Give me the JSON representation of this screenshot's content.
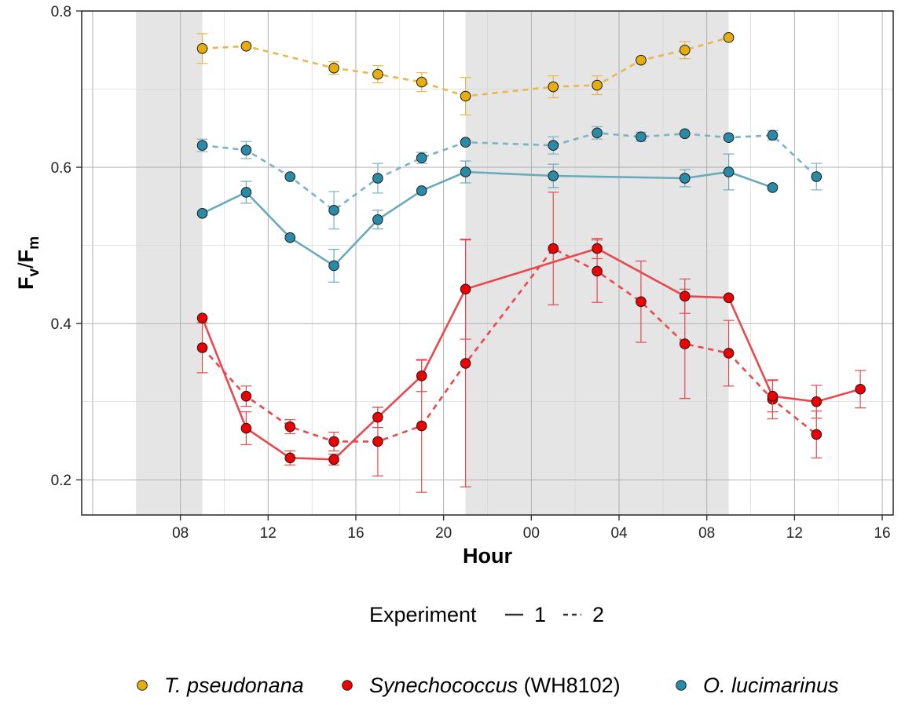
{
  "chart_data": {
    "type": "line",
    "xlabel": "Hour",
    "ylabel": {
      "base": "F",
      "sub1": "v",
      "sep": "/",
      "sub2": "m"
    },
    "x_unit": "hours since 00:00 of day 1",
    "xlim": [
      3.5,
      40.5
    ],
    "ylim": [
      0.155,
      0.8
    ],
    "x_ticks": [
      {
        "x": 8,
        "label": "08"
      },
      {
        "x": 12,
        "label": "12"
      },
      {
        "x": 16,
        "label": "16"
      },
      {
        "x": 20,
        "label": "20"
      },
      {
        "x": 24,
        "label": "00"
      },
      {
        "x": 28,
        "label": "04"
      },
      {
        "x": 32,
        "label": "08"
      },
      {
        "x": 36,
        "label": "12"
      },
      {
        "x": 40,
        "label": "16"
      }
    ],
    "y_ticks": [
      {
        "y": 0.2,
        "label": "0.2"
      },
      {
        "y": 0.4,
        "label": "0.4"
      },
      {
        "y": 0.6,
        "label": "0.6"
      },
      {
        "y": 0.8,
        "label": "0.8"
      }
    ],
    "grid": true,
    "shaded_periods": [
      [
        6,
        9
      ],
      [
        21,
        33
      ]
    ],
    "legend_position": "bottom",
    "experiment_legend": {
      "title": "Experiment",
      "items": [
        {
          "label": "1",
          "dash": "solid"
        },
        {
          "label": "2",
          "dash": "dashed"
        }
      ]
    },
    "species_legend": [
      {
        "italic": "T. pseudonana",
        "plain": "",
        "color": "#e5ad0d"
      },
      {
        "italic": "Synechococcus",
        "plain": "(WH8102)",
        "color": "#ee0000"
      },
      {
        "italic": "O. lucimarinus",
        "plain": "",
        "color": "#2a8ba8"
      }
    ],
    "series": [
      {
        "species": "T. pseudonana",
        "experiment": "2",
        "dash": "dashed",
        "line_color": "#e8b84a",
        "point_color": "#e5ad0d",
        "points": [
          [
            9,
            0.752,
            0.019
          ],
          [
            11,
            0.755,
            0
          ],
          [
            15,
            0.727,
            0.008
          ],
          [
            17,
            0.719,
            0.011
          ],
          [
            19,
            0.709,
            0.012
          ],
          [
            21,
            0.691,
            0.024
          ],
          [
            25,
            0.703,
            0.014
          ],
          [
            27,
            0.705,
            0.012
          ],
          [
            29,
            0.737,
            0
          ],
          [
            31,
            0.75,
            0.011
          ],
          [
            33,
            0.766,
            0
          ]
        ]
      },
      {
        "species": "O. lucimarinus",
        "experiment": "2",
        "dash": "dashed",
        "line_color": "#7ab4c4",
        "point_color": "#2a8ba8",
        "points": [
          [
            9,
            0.628,
            0.008
          ],
          [
            11,
            0.622,
            0.011
          ],
          [
            13,
            0.588,
            0
          ],
          [
            15,
            0.545,
            0.024
          ],
          [
            17,
            0.586,
            0.019
          ],
          [
            19,
            0.612,
            0.007
          ],
          [
            21,
            0.632,
            0
          ],
          [
            25,
            0.628,
            0.011
          ],
          [
            27,
            0.644,
            0.008
          ],
          [
            29,
            0.639,
            0.006
          ],
          [
            31,
            0.643,
            0
          ],
          [
            33,
            0.638,
            0
          ],
          [
            35,
            0.641,
            0.006
          ],
          [
            37,
            0.588,
            0.017
          ]
        ]
      },
      {
        "species": "O. lucimarinus",
        "experiment": "1",
        "dash": "solid",
        "line_color": "#6aaabb",
        "point_color": "#2a8ba8",
        "points": [
          [
            9,
            0.541,
            0
          ],
          [
            11,
            0.568,
            0.014
          ],
          [
            13,
            0.51,
            0
          ],
          [
            15,
            0.474,
            0.021
          ],
          [
            17,
            0.533,
            0.012
          ],
          [
            19,
            0.57,
            0
          ],
          [
            21,
            0.594,
            0.014
          ],
          [
            25,
            0.589,
            0.015
          ],
          [
            31,
            0.586,
            0.011
          ],
          [
            33,
            0.594,
            0.023
          ],
          [
            35,
            0.574,
            0
          ]
        ]
      },
      {
        "species": "Synechococcus (WH8102)",
        "experiment": "2",
        "dash": "dashed",
        "line_color": "#e8484e",
        "point_color": "#ee0000",
        "points": [
          [
            9,
            0.369,
            0.032
          ],
          [
            11,
            0.307,
            0.013
          ],
          [
            13,
            0.268,
            0.009
          ],
          [
            15,
            0.249,
            0.012
          ],
          [
            17,
            0.249,
            0.044
          ],
          [
            19,
            0.269,
            0.085
          ],
          [
            21,
            0.349,
            0.158
          ],
          [
            25,
            0.496,
            0.072
          ],
          [
            27,
            0.467,
            0.04
          ],
          [
            29,
            0.428,
            0.052
          ],
          [
            31,
            0.374,
            0.07
          ],
          [
            33,
            0.362,
            0.042
          ],
          [
            35,
            0.303,
            0.025
          ],
          [
            37,
            0.258,
            0.03
          ]
        ]
      },
      {
        "species": "Synechococcus (WH8102)",
        "experiment": "1",
        "dash": "solid",
        "line_color": "#e8484e",
        "point_color": "#ee0000",
        "points": [
          [
            9,
            0.407,
            0
          ],
          [
            11,
            0.266,
            0.021
          ],
          [
            13,
            0.228,
            0.009
          ],
          [
            15,
            0.226,
            0.007
          ],
          [
            17,
            0.28,
            0.013
          ],
          [
            19,
            0.333,
            0.02
          ],
          [
            21,
            0.444,
            0.064
          ],
          [
            27,
            0.496,
            0.013
          ],
          [
            31,
            0.435,
            0.022
          ],
          [
            33,
            0.433,
            0
          ],
          [
            35,
            0.307,
            0.02
          ],
          [
            37,
            0.3,
            0.021
          ],
          [
            39,
            0.316,
            0.024
          ]
        ]
      }
    ]
  }
}
